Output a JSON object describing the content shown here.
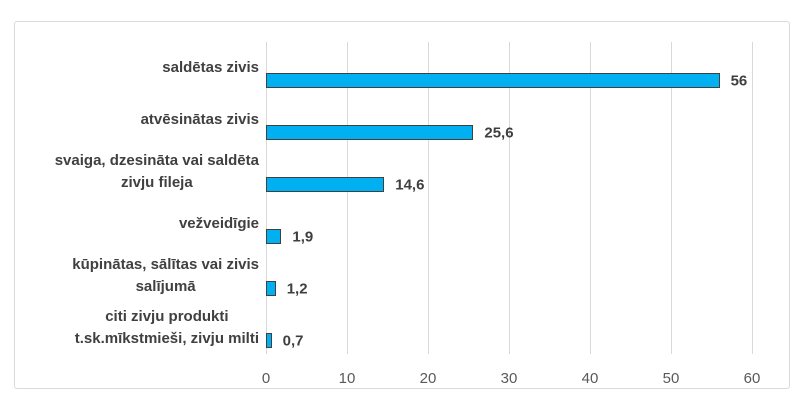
{
  "chart": {
    "background": "#FFFFFF",
    "border_color": "#D9D9D9"
  },
  "chart_data": {
    "type": "bar",
    "orientation": "horizontal",
    "title": "",
    "xlabel": "",
    "ylabel": "",
    "xlim": [
      0,
      60
    ],
    "x_ticks": [
      0,
      10,
      20,
      30,
      40,
      50,
      60
    ],
    "grid": true,
    "legend": false,
    "decimal_separator": ",",
    "categories": [
      "saldētas zivis",
      "atvēsinātas zivis",
      "svaiga, dzesināta vai saldēta zivju fileja",
      "vežveidīgie",
      "kūpinātas, sālītas vai zivis salījumā",
      "citi zivju produkti t.sk.mīkstmieši, zivju milti"
    ],
    "category_lines": [
      [
        "saldētas zivis"
      ],
      [
        "atvēsinātas zivis"
      ],
      [
        "svaiga, dzesināta vai saldēta",
        "zivju fileja"
      ],
      [
        "vežveidīgie"
      ],
      [
        "kūpinātas, sālītas vai zivis",
        "salījumā"
      ],
      [
        "citi zivju produkti",
        "t.sk.mīkstmieši, zivju milti"
      ]
    ],
    "values": [
      56,
      25.6,
      14.6,
      1.9,
      1.2,
      0.7
    ],
    "value_labels": [
      "56",
      "25,6",
      "14,6",
      "1,9",
      "1,2",
      "0,7"
    ],
    "colors": {
      "bar_fill": "#00B0F0",
      "bar_border": "#404040",
      "gridline": "#D9D9D9",
      "chart_border": "#D9D9D9",
      "category_text": "#404040",
      "value_text": "#3F3F3F",
      "tick_text": "#595959"
    }
  }
}
